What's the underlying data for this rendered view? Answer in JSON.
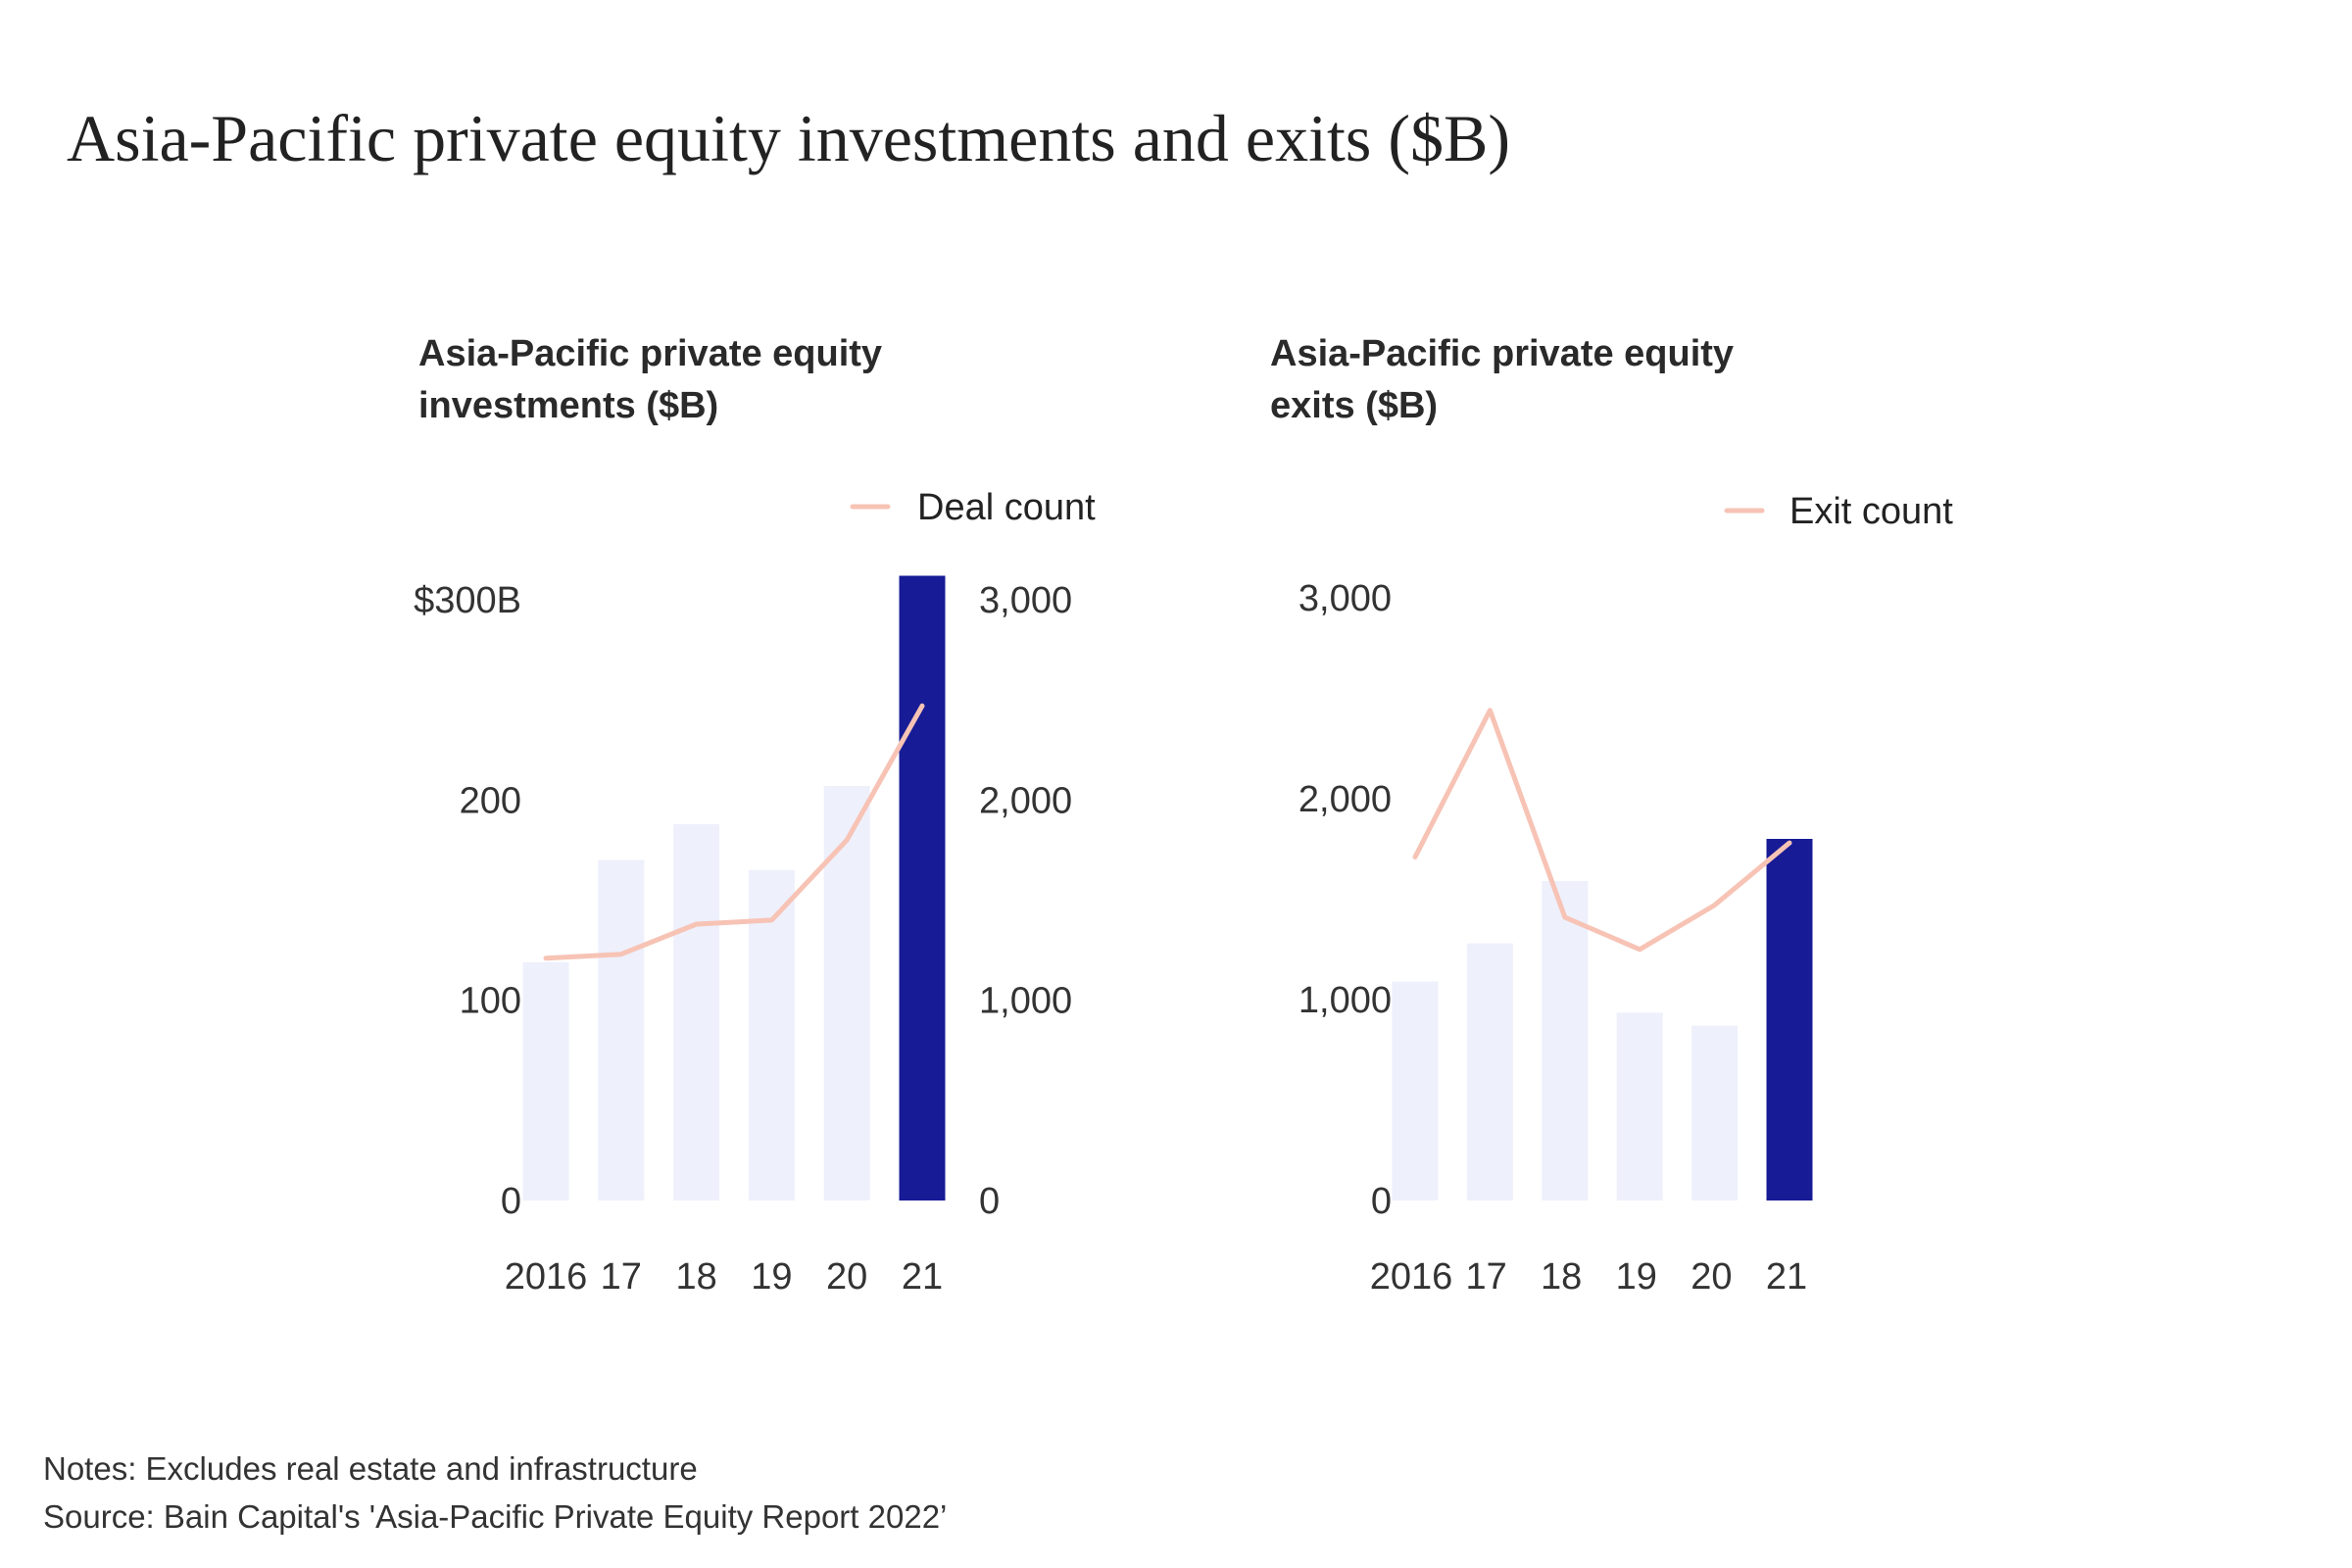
{
  "title": "Asia-Pacific private equity investments and exits ($B)",
  "colors": {
    "highlight_bar": "#171b96",
    "faded_bar": "#eef0fc",
    "count_line": "#f7c3b5"
  },
  "notes": {
    "note": "Notes: Excludes real estate and infrastructure",
    "source": "Source: Bain Capital's 'Asia-Pacific Private Equity Report 2022’"
  },
  "chart_data": [
    {
      "type": "bar",
      "title_line1": "Asia-Pacific private equity",
      "title_line2": "investments ($B)",
      "categories": [
        "2016",
        "17",
        "18",
        "19",
        "20",
        "21"
      ],
      "values": [
        119,
        170,
        188,
        165,
        207,
        312
      ],
      "highlight_index": 5,
      "ylim": [
        0,
        300
      ],
      "yticks": [
        0,
        100,
        200,
        300
      ],
      "ytick_labels": [
        "0",
        "100",
        "200",
        "$300B"
      ],
      "line": {
        "name": "Deal count",
        "values": [
          1210,
          1230,
          1380,
          1400,
          1800,
          2470
        ],
        "ylim": [
          0,
          3000
        ],
        "yticks": [
          0,
          1000,
          2000,
          3000
        ],
        "ytick_labels": [
          "0",
          "1,000",
          "2,000",
          "3,000"
        ]
      }
    },
    {
      "type": "bar",
      "title_line1": "Asia-Pacific private equity",
      "title_line2": "exits ($B)",
      "categories": [
        "2016",
        "17",
        "18",
        "19",
        "20",
        "21"
      ],
      "values": [
        1090,
        1280,
        1590,
        935,
        870,
        1800
      ],
      "highlight_index": 5,
      "ylim": [
        0,
        3000
      ],
      "yticks": [
        0,
        1000,
        2000,
        3000
      ],
      "ytick_labels": [
        "0",
        "1,000",
        "2,000",
        "3,000"
      ],
      "line": {
        "name": "Exit count",
        "values": [
          1710,
          2440,
          1410,
          1250,
          1470,
          1780
        ]
      }
    }
  ]
}
